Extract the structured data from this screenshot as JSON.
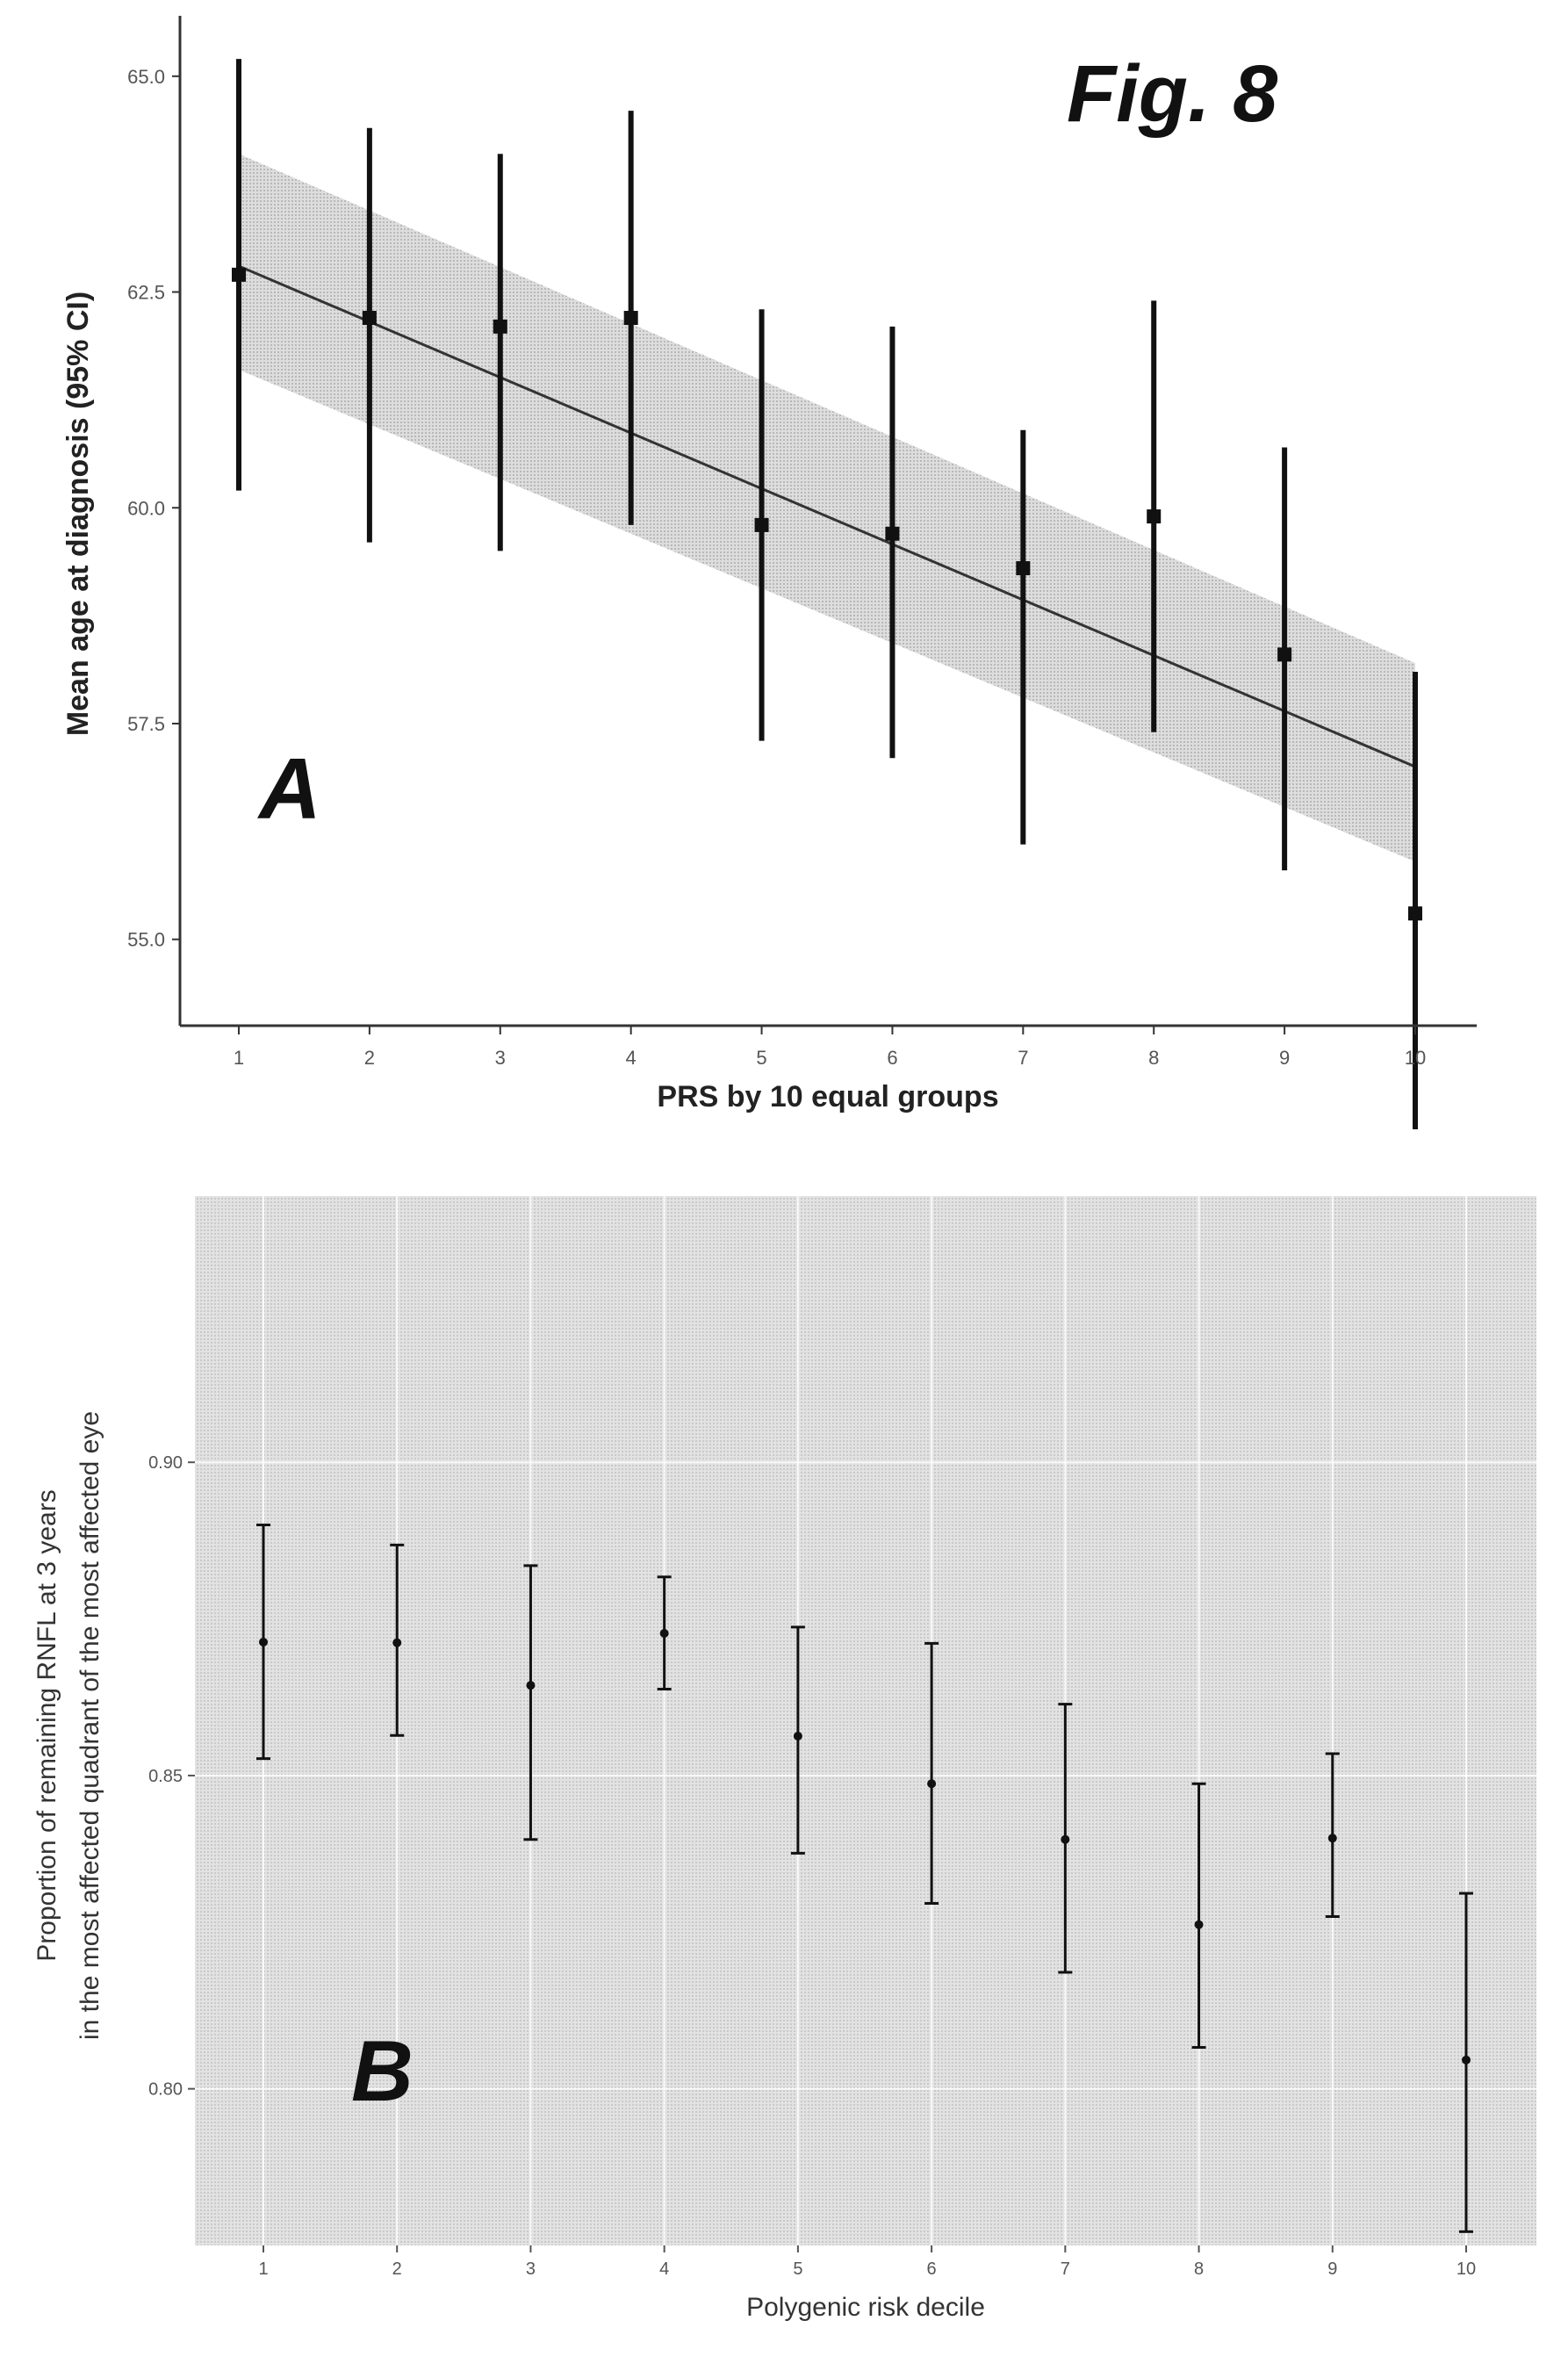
{
  "figure_title": "Fig. 8",
  "colors": {
    "ink": "#111111",
    "band": "#cfcfcf",
    "panel_bg": "#dcdcdc",
    "grid": "#ffffff"
  },
  "chart_data": [
    {
      "panel": "A",
      "type": "scatter",
      "xlabel": "PRS by 10 equal groups",
      "ylabel": "Mean age at diagnosis (95% CI)",
      "x": [
        1,
        2,
        3,
        4,
        5,
        6,
        7,
        8,
        9,
        10
      ],
      "xticks": [
        "1",
        "2",
        "3",
        "4",
        "5",
        "6",
        "7",
        "8",
        "9",
        "10"
      ],
      "yticks": [
        "55.0",
        "57.5",
        "60.0",
        "62.5",
        "65.0"
      ],
      "ylim": [
        54.0,
        65.7
      ],
      "series": [
        {
          "values": [
            62.7,
            62.2,
            62.1,
            62.2,
            59.8,
            59.7,
            59.3,
            59.9,
            58.3,
            55.3
          ],
          "ci_low": [
            60.2,
            59.6,
            59.5,
            59.8,
            57.3,
            57.1,
            56.1,
            57.4,
            55.8,
            52.8
          ],
          "ci_high": [
            65.2,
            64.4,
            64.1,
            64.6,
            62.3,
            62.1,
            60.9,
            62.4,
            60.7,
            58.1
          ]
        }
      ],
      "fit_line": {
        "x": [
          1,
          10
        ],
        "y": [
          62.8,
          57.0
        ],
        "band_low": [
          61.6,
          55.9
        ],
        "band_high": [
          64.1,
          58.2
        ]
      },
      "grid": false
    },
    {
      "panel": "B",
      "type": "scatter",
      "xlabel": "Polygenic risk decile",
      "ylabel": "Proportion of remaining RNFL at 3 years",
      "ylabel2": "in the most affected quadrant of the most affected eye",
      "x": [
        1,
        2,
        3,
        4,
        5,
        6,
        7,
        8,
        9,
        10
      ],
      "xticks": [
        "1",
        "2",
        "3",
        "4",
        "5",
        "6",
        "7",
        "8",
        "9",
        "10"
      ],
      "yticks": [
        "0.80",
        "0.85",
        "0.90"
      ],
      "ylim": [
        0.775,
        0.9425
      ],
      "series": [
        {
          "values": [
            0.8713,
            0.8712,
            0.8644,
            0.8727,
            0.8563,
            0.8487,
            0.8398,
            0.8262,
            0.84,
            0.8046
          ],
          "ci_low": [
            0.8527,
            0.8564,
            0.8398,
            0.8638,
            0.8376,
            0.8296,
            0.8186,
            0.8066,
            0.8275,
            0.7772
          ],
          "ci_high": [
            0.89,
            0.8868,
            0.8835,
            0.8817,
            0.8737,
            0.8711,
            0.8614,
            0.8487,
            0.8535,
            0.8312
          ]
        }
      ],
      "grid": true
    }
  ]
}
